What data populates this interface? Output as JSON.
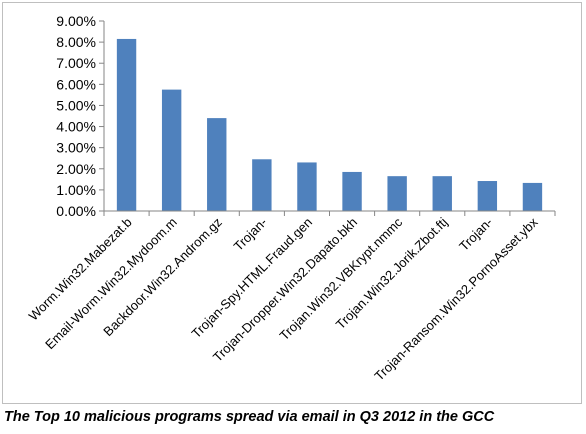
{
  "chart_data": {
    "type": "bar",
    "categories": [
      "Worm.Win32.Mabezat.b",
      "Email-Worm.Win32.Mydoom.m",
      "Backdoor.Win32.Androm.gz",
      "Trojan-",
      "Trojan-Spy.HTML.Fraud.gen",
      "Trojan-Dropper.Win32.Dapato.bkh",
      "Trojan.Win32.VBKrypt.nmmc",
      "Trojan.Win32.Jorik.Zbot.ftj",
      "Trojan-",
      "Trojan-Ransom.Win32.PornoAsset.ybx"
    ],
    "values": [
      8.15,
      5.75,
      4.4,
      2.45,
      2.3,
      1.85,
      1.65,
      1.65,
      1.42,
      1.33
    ],
    "ylim": [
      0,
      9
    ],
    "yticks": [
      "0.00%",
      "1.00%",
      "2.00%",
      "3.00%",
      "4.00%",
      "5.00%",
      "6.00%",
      "7.00%",
      "8.00%",
      "9.00%"
    ],
    "grid": false,
    "legend": "none",
    "bar_color": "#4f81bd",
    "axis_color": "#868686",
    "caption": "The Top 10 malicious programs spread via email in Q3 2012 in the GCC"
  }
}
